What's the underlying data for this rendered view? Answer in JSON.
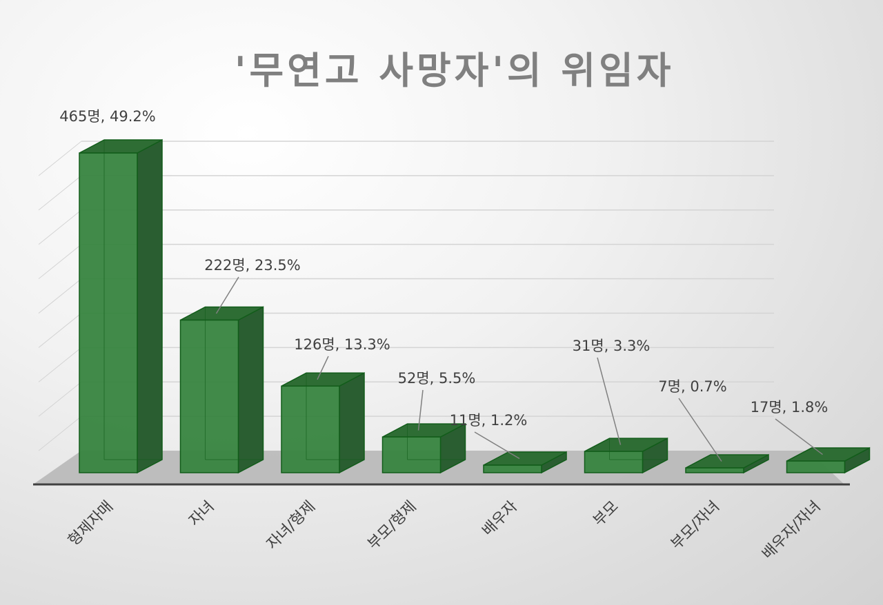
{
  "title": "'무연고 사망자'의 위임자",
  "colors": {
    "bar_front": "#37843f",
    "bar_side": "#2a5e31",
    "bar_top": "#2e6d34",
    "bar_edge": "#125c1a",
    "floor": "#b8b8b8",
    "gridline": "#d4d4d4",
    "axis": "#404040",
    "label_text": "#404040",
    "leader": "#808080",
    "title": "#808080"
  },
  "chart_data": {
    "type": "bar",
    "style": "3d-column",
    "title": "'무연고 사망자'의 위임자",
    "categories": [
      "형제자매",
      "자녀",
      "자녀/형제",
      "부모/형제",
      "배우자",
      "부모",
      "부모/자녀",
      "배우자/자녀"
    ],
    "values": [
      465,
      222,
      126,
      52,
      11,
      31,
      7,
      17
    ],
    "percents": [
      49.2,
      23.5,
      13.3,
      5.5,
      1.2,
      3.3,
      0.7,
      1.8
    ],
    "data_labels": [
      "465명, 49.2%",
      "222명, 23.5%",
      "126명, 13.3%",
      "52명, 5.5%",
      "11명, 1.2%",
      "31명, 3.3%",
      "7명, 0.7%",
      "17명, 1.8%"
    ],
    "ylim": [
      0,
      500
    ],
    "grid": true,
    "legend": "none",
    "y_tick_labels_shown": false
  }
}
